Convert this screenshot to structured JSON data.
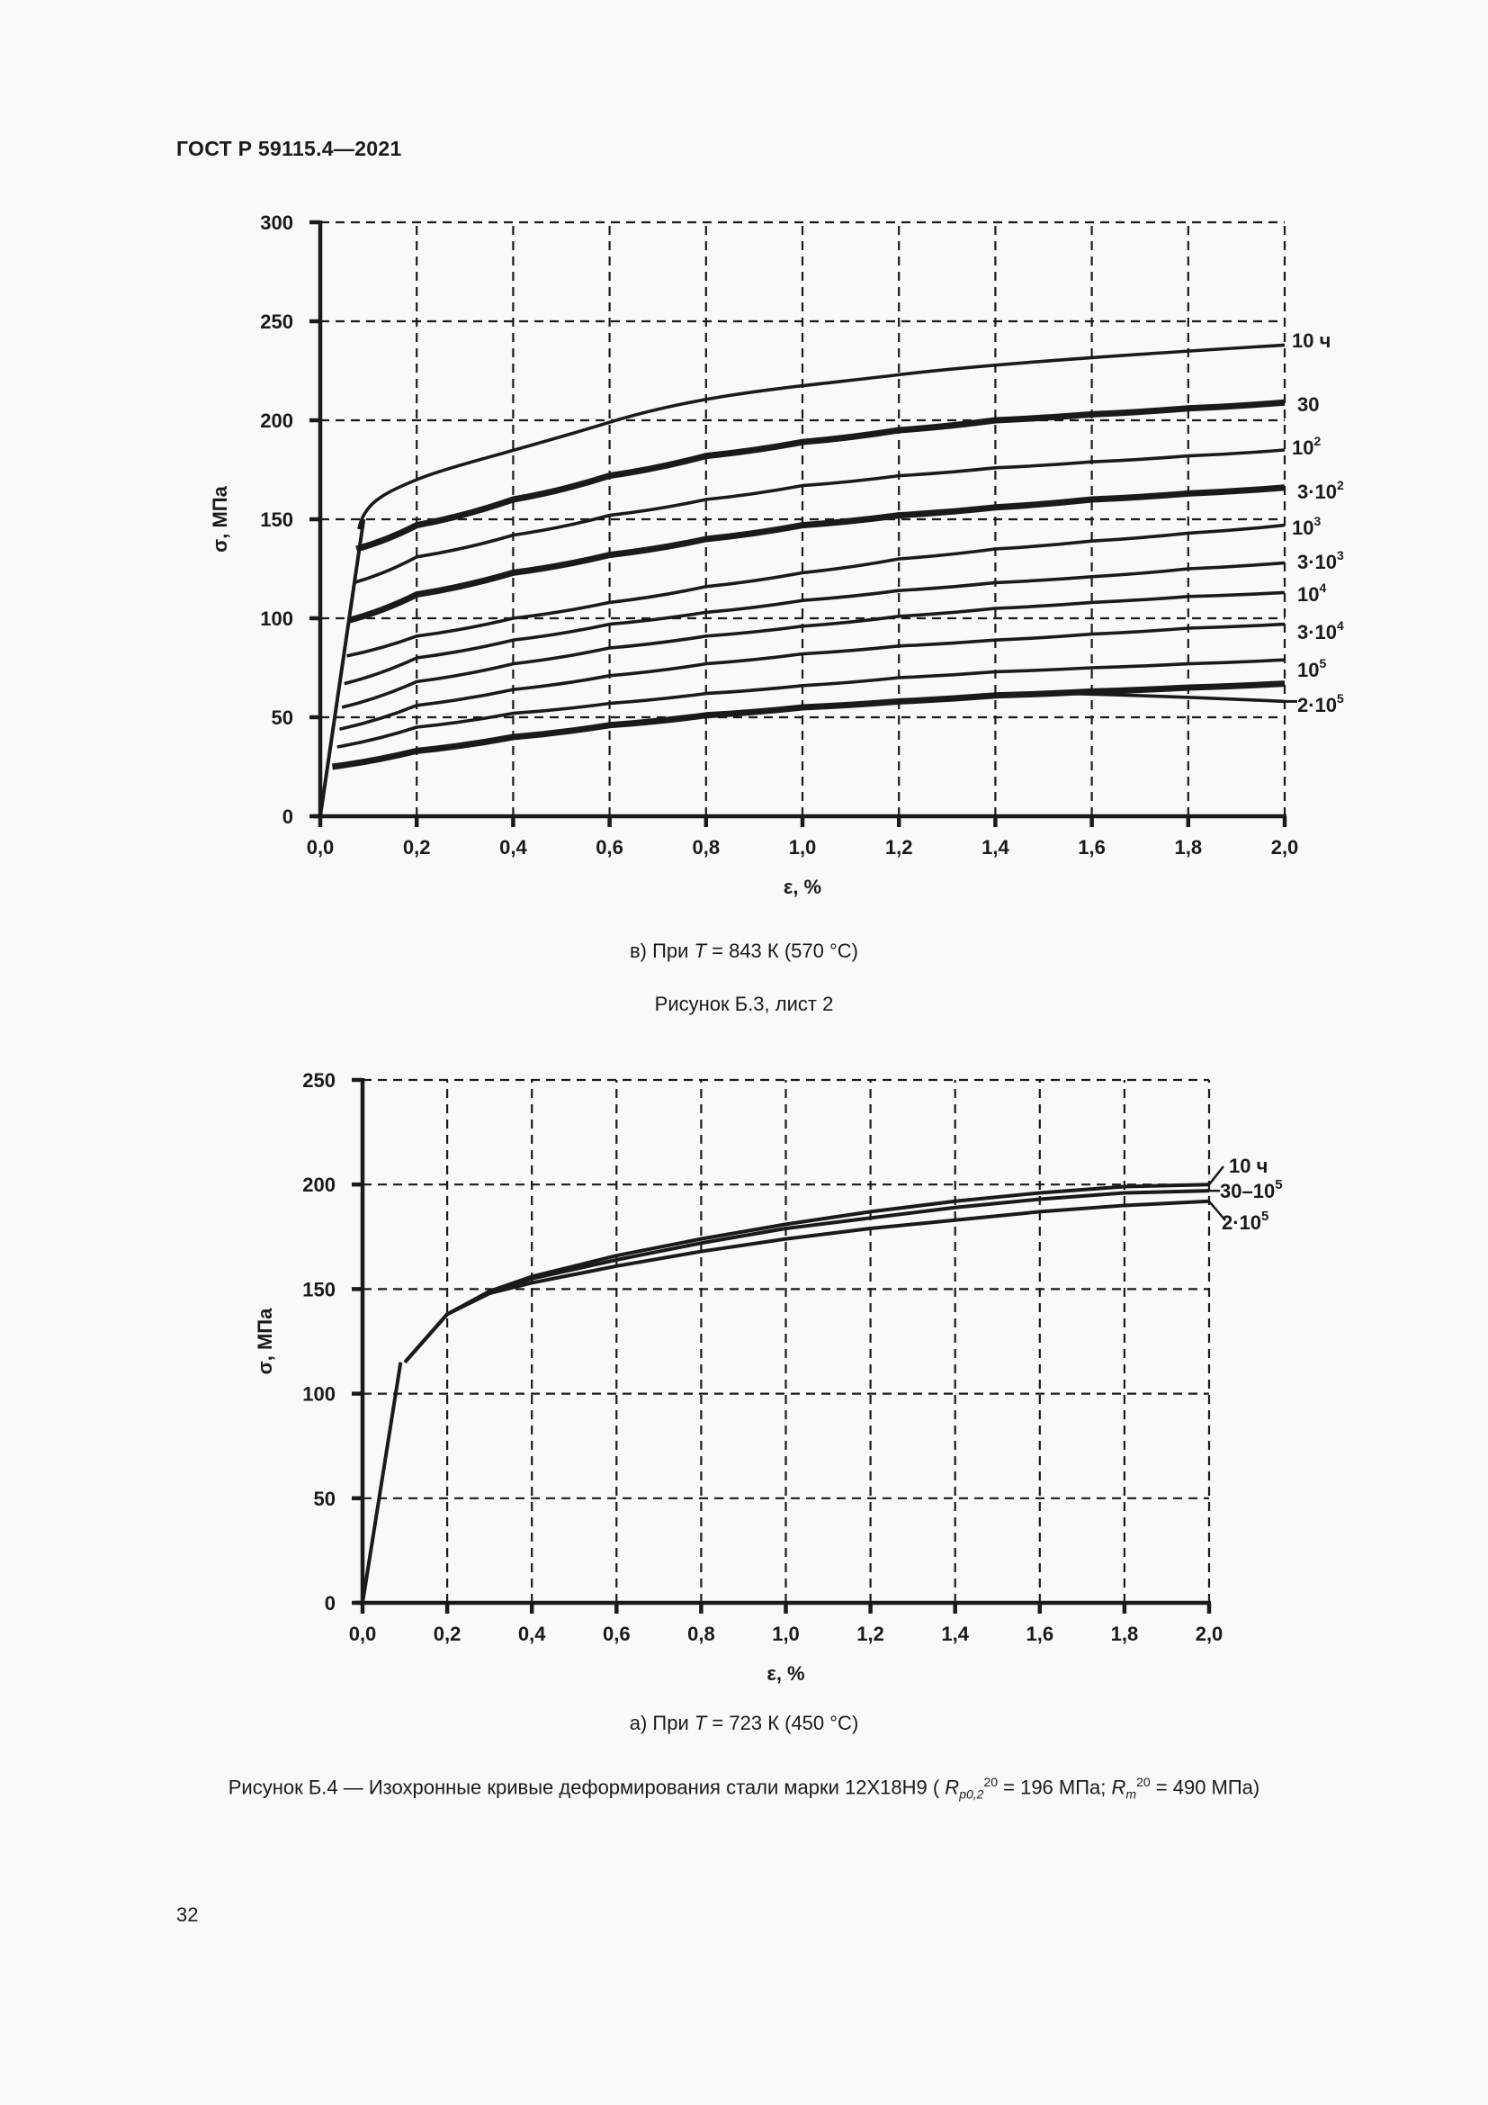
{
  "page": {
    "header": "ГОСТ Р 59115.4—2021",
    "page_number": "32"
  },
  "captions": {
    "chart1_sub": {
      "prefix": "в) При ",
      "var": "T",
      "suffix": " = 843 К (570 °С)"
    },
    "sheet": "Рисунок Б.3, лист 2",
    "chart2_sub": {
      "prefix": "а) При ",
      "var": "T",
      "suffix": " = 723 К (450 °С)"
    },
    "figure": {
      "text_before": "Рисунок Б.4 — Изохронные кривые деформирования стали марки 12Х18Н9 (",
      "r1_sym": "R",
      "r1_sup": "20",
      "r1_sub": "p0,2",
      "r1_value": " = 196 МПа; ",
      "r2_sym": "R",
      "r2_sup": "20",
      "r2_sub": "m",
      "r2_value": " = 490 МПа)"
    }
  },
  "chart_data": [
    {
      "type": "line",
      "title": "в) При T = 843 К (570 °С)",
      "xlabel": "ε, %",
      "ylabel": "σ, МПа",
      "xlim": [
        0,
        2.0
      ],
      "ylim": [
        0,
        300
      ],
      "xticks": [
        "0,0",
        "0,2",
        "0,4",
        "0,6",
        "0,8",
        "1,0",
        "1,2",
        "1,4",
        "1,6",
        "1,8",
        "2,0"
      ],
      "yticks": [
        "0",
        "50",
        "100",
        "150",
        "200",
        "250",
        "300"
      ],
      "grid": true,
      "legend_position": "right-inline",
      "elastic_line": [
        [
          0,
          0
        ],
        [
          0.09,
          150
        ]
      ],
      "x": [
        0.0,
        0.2,
        0.4,
        0.6,
        0.8,
        1.0,
        1.2,
        1.4,
        1.6,
        1.8,
        2.0
      ],
      "series": [
        {
          "name": "10 ч",
          "label": "10 ч",
          "sup": "",
          "start": [
            0.08,
            145
          ],
          "thick": false,
          "values": [
            null,
            170,
            186,
            200,
            210,
            217,
            223,
            228,
            232,
            235,
            238
          ]
        },
        {
          "name": "30",
          "label": "30",
          "sup": "",
          "start": [
            0.075,
            135
          ],
          "thick": true,
          "values": [
            null,
            147,
            160,
            172,
            182,
            189,
            195,
            200,
            203,
            206,
            209
          ]
        },
        {
          "name": "10^2",
          "label": "10",
          "sup": "2",
          "start": [
            0.07,
            118
          ],
          "thick": false,
          "values": [
            null,
            131,
            142,
            152,
            160,
            167,
            172,
            176,
            179,
            182,
            185
          ]
        },
        {
          "name": "3·10^2",
          "label": "3·10",
          "sup": "2",
          "start": [
            0.06,
            99
          ],
          "thick": true,
          "values": [
            null,
            112,
            123,
            132,
            140,
            147,
            152,
            156,
            160,
            163,
            166
          ]
        },
        {
          "name": "10^3",
          "label": "10",
          "sup": "3",
          "start": [
            0.055,
            81
          ],
          "thick": false,
          "values": [
            null,
            91,
            100,
            108,
            116,
            123,
            130,
            135,
            139,
            143,
            147
          ]
        },
        {
          "name": "3·10^3",
          "label": "3·10",
          "sup": "3",
          "start": [
            0.05,
            67
          ],
          "thick": false,
          "values": [
            null,
            80,
            89,
            97,
            103,
            109,
            114,
            118,
            121,
            125,
            128
          ]
        },
        {
          "name": "10^4",
          "label": "10",
          "sup": "4",
          "start": [
            0.045,
            55
          ],
          "thick": false,
          "values": [
            null,
            68,
            77,
            85,
            91,
            96,
            101,
            105,
            108,
            111,
            113
          ]
        },
        {
          "name": "3·10^4",
          "label": "3·10",
          "sup": "4",
          "start": [
            0.04,
            44
          ],
          "thick": false,
          "values": [
            null,
            56,
            64,
            71,
            77,
            82,
            86,
            89,
            92,
            95,
            97
          ]
        },
        {
          "name": "10^5",
          "label": "10",
          "sup": "5",
          "start": [
            0.035,
            35
          ],
          "thick": false,
          "values": [
            null,
            45,
            52,
            57,
            62,
            66,
            70,
            73,
            75,
            77,
            79
          ]
        },
        {
          "name": "2·10^5",
          "label": "2·10",
          "sup": "5",
          "start": [
            0.025,
            25
          ],
          "thick": true,
          "values": [
            null,
            33,
            40,
            46,
            51,
            55,
            58,
            61,
            63,
            65,
            67
          ]
        },
        {
          "name": "2·10^5 leader",
          "label": "",
          "sup": "",
          "start": [
            1.55,
            62
          ],
          "thick": false,
          "values": [
            null,
            null,
            null,
            null,
            null,
            null,
            null,
            null,
            null,
            null,
            58
          ]
        }
      ]
    },
    {
      "type": "line",
      "title": "а) При T = 723 К (450 °С)",
      "xlabel": "ε, %",
      "ylabel": "σ, МПа",
      "xlim": [
        0,
        2.0
      ],
      "ylim": [
        0,
        250
      ],
      "xticks": [
        "0,0",
        "0,2",
        "0,4",
        "0,6",
        "0,8",
        "1,0",
        "1,2",
        "1,4",
        "1,6",
        "1,8",
        "2,0"
      ],
      "yticks": [
        "0",
        "50",
        "100",
        "150",
        "200",
        "250"
      ],
      "grid": true,
      "legend_position": "right-inline",
      "elastic_line": [
        [
          0,
          0
        ],
        [
          0.09,
          115
        ]
      ],
      "x": [
        0.1,
        0.2,
        0.3,
        0.4,
        0.6,
        0.8,
        1.0,
        1.2,
        1.4,
        1.6,
        1.8,
        2.0
      ],
      "series": [
        {
          "name": "10 ч",
          "label": "10 ч",
          "sup": "",
          "values": [
            115,
            138,
            149,
            156,
            166,
            174,
            181,
            187,
            192,
            196,
            199,
            200
          ]
        },
        {
          "name": "30–10^5",
          "label": "30–10",
          "sup": "5",
          "values": [
            115,
            138,
            148,
            155,
            164,
            172,
            179,
            184,
            189,
            193,
            196,
            197
          ]
        },
        {
          "name": "2·10^5",
          "label": "2·10",
          "sup": "5",
          "values": [
            115,
            138,
            148,
            153,
            161,
            168,
            174,
            179,
            183,
            187,
            190,
            192
          ]
        }
      ]
    }
  ]
}
